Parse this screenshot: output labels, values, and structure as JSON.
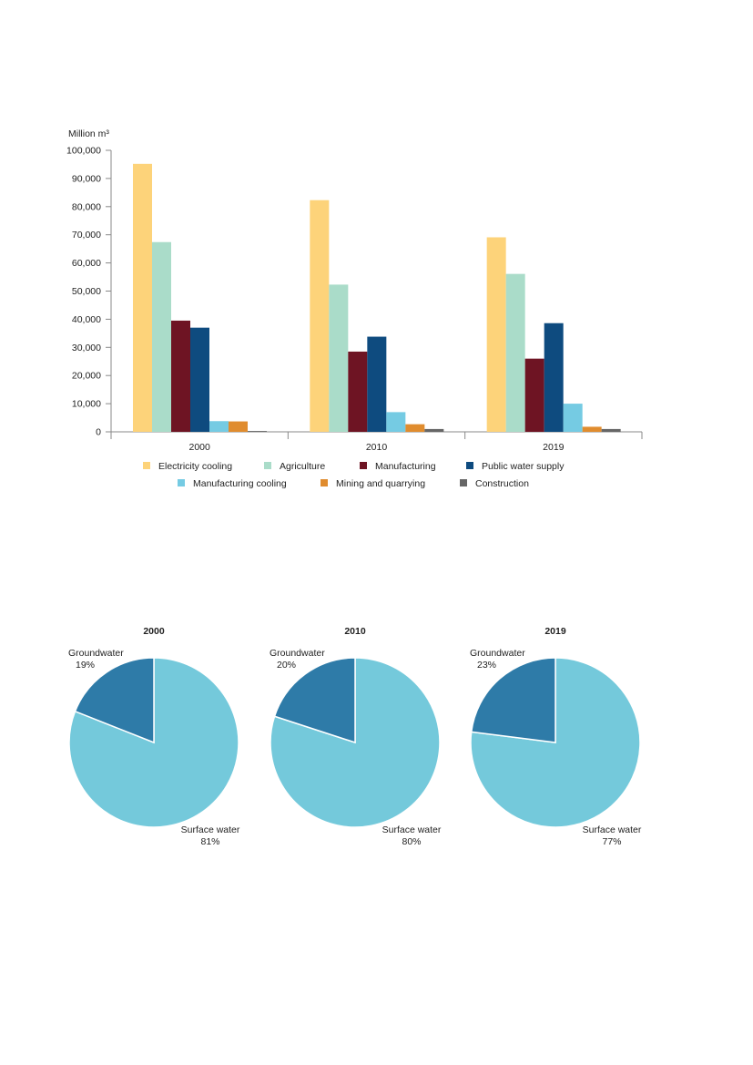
{
  "chart_data": [
    {
      "type": "bar",
      "ylabel": "Million m³",
      "ylim": [
        0,
        100000
      ],
      "yticks": [
        0,
        10000,
        20000,
        30000,
        40000,
        50000,
        60000,
        70000,
        80000,
        90000,
        100000
      ],
      "ytick_labels": [
        "0",
        "10,000",
        "20,000",
        "30,000",
        "40,000",
        "50,000",
        "60,000",
        "70,000",
        "80,000",
        "90,000",
        "100,000"
      ],
      "categories": [
        "2000",
        "2010",
        "2019"
      ],
      "series": [
        {
          "name": "Electricity cooling",
          "color": "#fdd37a",
          "values": [
            95200,
            82300,
            69100
          ]
        },
        {
          "name": "Agriculture",
          "color": "#aadcc9",
          "values": [
            67400,
            52300,
            56100
          ]
        },
        {
          "name": "Manufacturing",
          "color": "#6e1423",
          "values": [
            39500,
            28500,
            26000
          ]
        },
        {
          "name": "Public water supply",
          "color": "#0e4b7f",
          "values": [
            37000,
            33800,
            38600
          ]
        },
        {
          "name": "Manufacturing cooling",
          "color": "#75cbe3",
          "values": [
            3800,
            7000,
            10000
          ]
        },
        {
          "name": "Mining and quarrying",
          "color": "#e08c2e",
          "values": [
            3700,
            2700,
            1800
          ]
        },
        {
          "name": "Construction",
          "color": "#666666",
          "values": [
            300,
            1000,
            1000
          ]
        }
      ],
      "legend": "bottom",
      "grid": false
    },
    {
      "type": "pie",
      "title": "2000",
      "slices": [
        {
          "label": "Groundwater",
          "pct_label": "19%",
          "value": 19,
          "color": "#2e7ba8"
        },
        {
          "label": "Surface water",
          "pct_label": "81%",
          "value": 81,
          "color": "#74c9db"
        }
      ]
    },
    {
      "type": "pie",
      "title": "2010",
      "slices": [
        {
          "label": "Groundwater",
          "pct_label": "20%",
          "value": 20,
          "color": "#2e7ba8"
        },
        {
          "label": "Surface water",
          "pct_label": "80%",
          "value": 80,
          "color": "#74c9db"
        }
      ]
    },
    {
      "type": "pie",
      "title": "2019",
      "slices": [
        {
          "label": "Groundwater",
          "pct_label": "23%",
          "value": 23,
          "color": "#2e7ba8"
        },
        {
          "label": "Surface water",
          "pct_label": "77%",
          "value": 77,
          "color": "#74c9db"
        }
      ]
    }
  ]
}
